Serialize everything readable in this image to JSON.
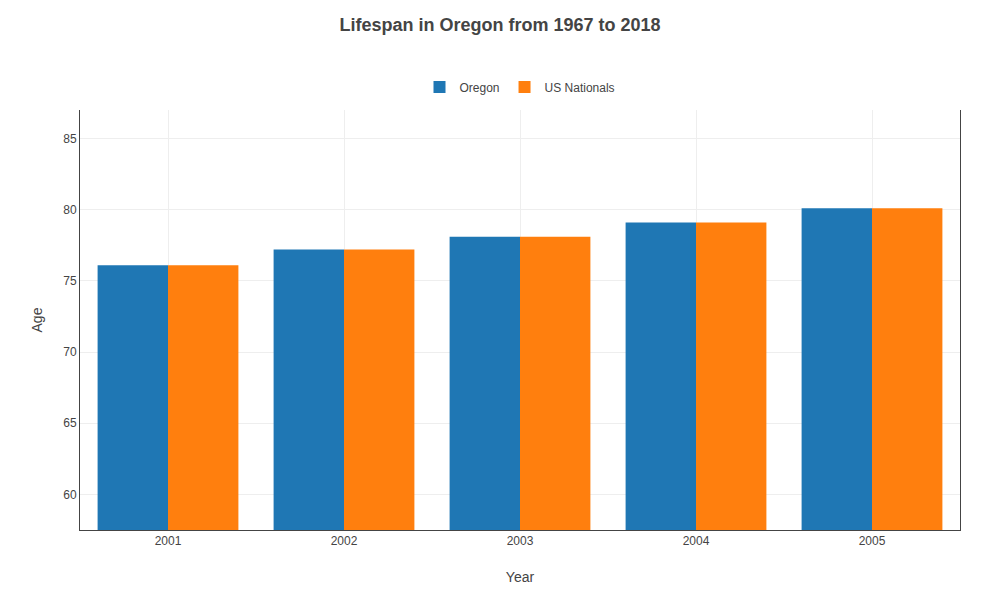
{
  "chart_data": {
    "type": "bar",
    "title": "Lifespan in Oregon from 1967 to 2018",
    "x_label": "Year",
    "y_label": "Age",
    "categories": [
      "2001",
      "2002",
      "2003",
      "2004",
      "2005"
    ],
    "series": [
      {
        "name": "Oregon",
        "values": [
          76.1,
          77.2,
          78.1,
          79.1,
          80.1
        ]
      },
      {
        "name": "US Nationals",
        "values": [
          76.1,
          77.2,
          78.1,
          79.1,
          80.1
        ]
      }
    ],
    "ylim": [
      57.5,
      87
    ],
    "yticks": [
      60,
      65,
      70,
      75,
      80,
      85
    ],
    "grid": true,
    "legend": "top"
  }
}
